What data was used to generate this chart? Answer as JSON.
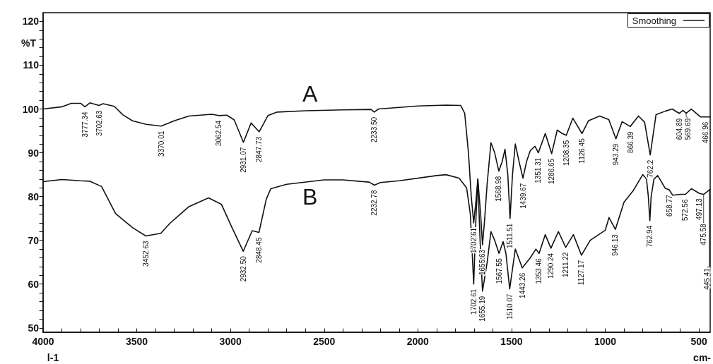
{
  "chart_data": {
    "type": "line",
    "ylabel": "%T",
    "xlabel": "cm-",
    "legend_title": "Smoothing",
    "grid": false,
    "xlim": [
      4000,
      440
    ],
    "ylim": [
      49,
      122
    ],
    "xticks": [
      4000,
      {
        "value": 3900,
        "label": null
      },
      {
        "value": 3800,
        "label": null
      },
      {
        "value": 3700,
        "label": null
      },
      {
        "value": 3600,
        "label": null
      },
      3500,
      {
        "value": 3400,
        "label": null
      },
      {
        "value": 3300,
        "label": null
      },
      {
        "value": 3200,
        "label": null
      },
      {
        "value": 3100,
        "label": null
      },
      3000,
      {
        "value": 2900,
        "label": null
      },
      {
        "value": 2800,
        "label": null
      },
      {
        "value": 2700,
        "label": null
      },
      {
        "value": 2600,
        "label": null
      },
      2500,
      {
        "value": 2400,
        "label": null
      },
      {
        "value": 2300,
        "label": null
      },
      {
        "value": 2200,
        "label": null
      },
      {
        "value": 2100,
        "label": null
      },
      2000,
      {
        "value": 1900,
        "label": null
      },
      {
        "value": 1800,
        "label": null
      },
      {
        "value": 1700,
        "label": null
      },
      {
        "value": 1600,
        "label": null
      },
      1500,
      {
        "value": 1400,
        "label": null
      },
      {
        "value": 1300,
        "label": null
      },
      {
        "value": 1200,
        "label": null
      },
      {
        "value": 1100,
        "label": null
      },
      1000,
      {
        "value": 900,
        "label": null
      },
      {
        "value": 800,
        "label": null
      },
      {
        "value": 700,
        "label": null
      },
      {
        "value": 600,
        "label": null
      },
      500
    ],
    "yticks": [
      50,
      {
        "value": 52,
        "label": null
      },
      {
        "value": 54,
        "label": null
      },
      {
        "value": 56,
        "label": null
      },
      {
        "value": 58,
        "label": null
      },
      60,
      {
        "value": 62,
        "label": null
      },
      {
        "value": 64,
        "label": null
      },
      {
        "value": 66,
        "label": null
      },
      {
        "value": 68,
        "label": null
      },
      70,
      {
        "value": 72,
        "label": null
      },
      {
        "value": 74,
        "label": null
      },
      {
        "value": 76,
        "label": null
      },
      {
        "value": 78,
        "label": null
      },
      80,
      {
        "value": 82,
        "label": null
      },
      {
        "value": 84,
        "label": null
      },
      {
        "value": 86,
        "label": null
      },
      {
        "value": 88,
        "label": null
      },
      90,
      {
        "value": 92,
        "label": null
      },
      {
        "value": 94,
        "label": null
      },
      {
        "value": 96,
        "label": null
      },
      {
        "value": 98,
        "label": null
      },
      100,
      {
        "value": 102,
        "label": null
      },
      {
        "value": 104,
        "label": null
      },
      {
        "value": 106,
        "label": null
      },
      {
        "value": 108,
        "label": null
      },
      110,
      {
        "value": 112,
        "label": null
      },
      {
        "value": 114,
        "label": null
      },
      {
        "value": 116,
        "label": null
      },
      {
        "value": 118,
        "label": null
      },
      120
    ],
    "series": [
      {
        "name": "A",
        "color": "#111111",
        "x": [
          4000,
          3900,
          3850,
          3800,
          3777,
          3750,
          3702,
          3680,
          3620,
          3575,
          3523,
          3450,
          3370,
          3300,
          3222,
          3100,
          3062,
          3020,
          2980,
          2931,
          2890,
          2847,
          2800,
          2750,
          2600,
          2400,
          2250,
          2233,
          2210,
          2000,
          1850,
          1771,
          1750,
          1730,
          1715,
          1702,
          1690,
          1680,
          1665,
          1655,
          1645,
          1630,
          1610,
          1590,
          1568,
          1550,
          1535,
          1520,
          1508,
          1495,
          1480,
          1460,
          1439,
          1420,
          1400,
          1375,
          1357,
          1320,
          1286,
          1256,
          1230,
          1208,
          1173,
          1124,
          1090,
          1030,
          981,
          943,
          910,
          866,
          823,
          790,
          760,
          729,
          680,
          643,
          605,
          585,
          568,
          541,
          492,
          440
        ],
        "values": [
          100,
          100.5,
          101.3,
          101.3,
          100.5,
          101.4,
          100.8,
          101.2,
          100.6,
          98.7,
          97.3,
          96.5,
          96.1,
          97.3,
          98.4,
          98.8,
          98.5,
          98.6,
          97.5,
          92.4,
          96.8,
          94.8,
          98.5,
          99.3,
          99.6,
          99.8,
          99.9,
          99.3,
          100,
          100.7,
          100.9,
          100.8,
          99,
          90,
          80,
          74,
          79,
          84,
          76,
          69,
          74,
          83,
          92.3,
          90,
          85.8,
          88,
          90.8,
          85,
          75,
          85,
          92,
          88,
          84.2,
          88,
          90.5,
          91.5,
          90,
          94.4,
          89.8,
          95.2,
          94.4,
          94,
          97.9,
          94.4,
          97.3,
          98.4,
          97.6,
          93.2,
          97.1,
          96,
          98.4,
          97,
          89.5,
          98.7,
          99.5,
          100,
          99,
          99.7,
          99,
          100,
          98.2,
          98.2
        ]
      },
      {
        "name": "B",
        "color": "#111111",
        "x": [
          4000,
          3900,
          3800,
          3750,
          3688,
          3613,
          3523,
          3452,
          3372,
          3323,
          3222,
          3117,
          3048,
          2992,
          2932,
          2884,
          2848,
          2809,
          2785,
          2700,
          2500,
          2400,
          2260,
          2232,
          2200,
          2100,
          1900,
          1850,
          1780,
          1740,
          1720,
          1702,
          1690,
          1680,
          1668,
          1655,
          1630,
          1610,
          1590,
          1567,
          1545,
          1530,
          1510,
          1480,
          1443,
          1400,
          1370,
          1353,
          1320,
          1290,
          1250,
          1211,
          1170,
          1127,
          1080,
          1000,
          980,
          946,
          900,
          850,
          800,
          780,
          770,
          762,
          755,
          740,
          720,
          680,
          658,
          640,
          600,
          572,
          540,
          497,
          475,
          445,
          440
        ],
        "values": [
          83.4,
          83.9,
          83.6,
          83.5,
          82.3,
          76.1,
          72.9,
          71,
          71.6,
          73.9,
          77.7,
          79.7,
          78.2,
          72.9,
          67.5,
          72.2,
          71.8,
          79.4,
          81.8,
          82.8,
          83.8,
          83.8,
          83.3,
          82.6,
          83.2,
          83.6,
          84.8,
          85,
          84.2,
          82,
          76,
          60,
          75,
          84,
          70,
          58.4,
          65,
          72,
          70,
          67,
          69.7,
          67,
          58.9,
          68,
          63.7,
          66,
          68,
          67,
          71.3,
          68.2,
          72,
          68.4,
          71.3,
          66.6,
          70,
          72.3,
          75.2,
          72.5,
          78.7,
          81.4,
          85,
          84,
          80,
          74.5,
          80,
          84,
          84.8,
          81.9,
          81.5,
          80.3,
          80.5,
          80.5,
          81.8,
          80.7,
          80.5,
          81.5,
          81.6
        ]
      }
    ],
    "annotations": [
      "l-1",
      {
        "text": "3777.34",
        "x": 3777,
        "y": 100.5
      },
      {
        "text": "3702.63",
        "x": 3702,
        "y": 100.8
      },
      {
        "text": "3370.01",
        "x": 3370,
        "y": 96.1
      },
      {
        "text": "3062.54",
        "x": 3062,
        "y": 98.5
      },
      {
        "text": "2931.07",
        "x": 2931,
        "y": 92.4
      },
      {
        "text": "2847.73",
        "x": 2847,
        "y": 94.8
      },
      {
        "text": "2233.50",
        "x": 2233,
        "y": 99.3
      },
      {
        "text": "1702.61",
        "x": 1702,
        "y": 74
      },
      {
        "text": "1655.63",
        "x": 1655,
        "y": 69
      },
      {
        "text": "1568.98",
        "x": 1568,
        "y": 85.8
      },
      {
        "text": "1511.51",
        "x": 1508,
        "y": 75
      },
      {
        "text": "1439.67",
        "x": 1439,
        "y": 84.2
      },
      {
        "text": "1351.31",
        "x": 1357,
        "y": 90
      },
      {
        "text": "1286.65",
        "x": 1286,
        "y": 89.8
      },
      {
        "text": "1208.35",
        "x": 1208,
        "y": 94
      },
      {
        "text": "1126.45",
        "x": 1124,
        "y": 94.4
      },
      {
        "text": "943.29",
        "x": 943,
        "y": 93.2
      },
      {
        "text": "866.39",
        "x": 866,
        "y": 96
      },
      {
        "text": "762.2",
        "x": 760,
        "y": 89.5
      },
      {
        "text": "604.89",
        "x": 605,
        "y": 99
      },
      {
        "text": "569.69",
        "x": 568,
        "y": 99
      },
      {
        "text": "466.96",
        "x": 466,
        "y": 98.2
      },
      {
        "text": "3452.63",
        "x": 3452,
        "y": 71
      },
      {
        "text": "2932.50",
        "x": 2932,
        "y": 67.5
      },
      {
        "text": "2848.45",
        "x": 2848,
        "y": 71.8
      },
      {
        "text": "2232.78",
        "x": 2232,
        "y": 82.6
      },
      {
        "text": "1702.61",
        "x": 1702,
        "y": 60
      },
      {
        "text": "1655.19",
        "x": 1655,
        "y": 58.4
      },
      {
        "text": "1567.55",
        "x": 1567,
        "y": 67
      },
      {
        "text": "1510.07",
        "x": 1510,
        "y": 58.9
      },
      {
        "text": "1443.26",
        "x": 1443,
        "y": 63.7
      },
      {
        "text": "1353.46",
        "x": 1353,
        "y": 67
      },
      {
        "text": "1290.24",
        "x": 1290,
        "y": 68.2
      },
      {
        "text": "1211.22",
        "x": 1211,
        "y": 68.4
      },
      {
        "text": "1127.17",
        "x": 1127,
        "y": 66.6
      },
      {
        "text": "946.13",
        "x": 946,
        "y": 72.5
      },
      {
        "text": "762.94",
        "x": 762,
        "y": 74.5
      },
      {
        "text": "658.77",
        "x": 658,
        "y": 81.5
      },
      {
        "text": "572.56",
        "x": 572,
        "y": 80.5
      },
      {
        "text": "497.13",
        "x": 497,
        "y": 80.7
      },
      {
        "text": "475.58",
        "x": 475,
        "y": 80.5
      },
      {
        "text": "445.41",
        "x": 445,
        "y": 81.5
      }
    ]
  }
}
